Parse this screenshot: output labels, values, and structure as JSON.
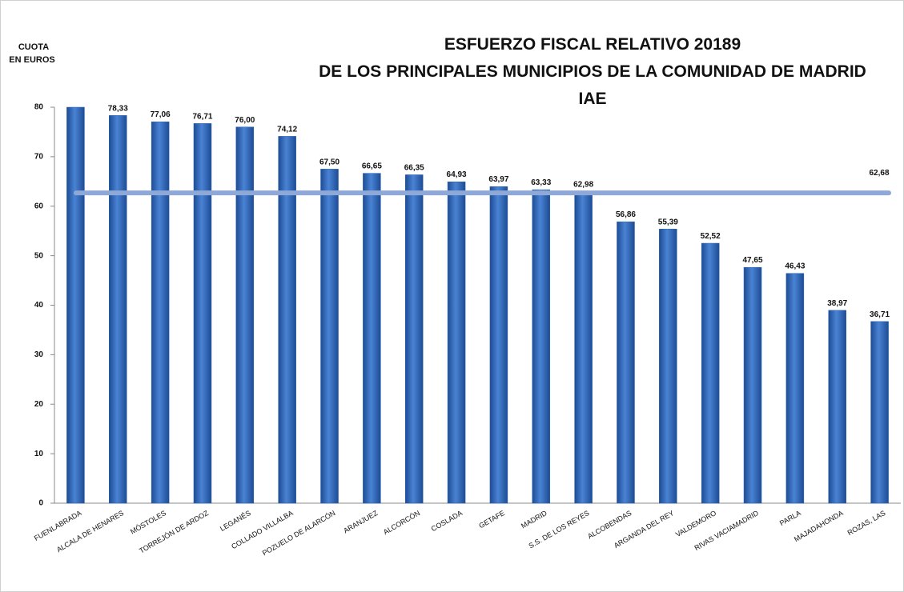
{
  "chart_data": {
    "type": "bar",
    "title": [
      "ESFUERZO FISCAL RELATIVO 20189",
      "DE LOS PRINCIPALES MUNICIPIOS DE LA COMUNIDAD DE MADRID",
      "IAE"
    ],
    "ylabel": [
      "CUOTA",
      "EN EUROS"
    ],
    "categories": [
      "FUENLABRADA",
      "ALCALA DE HENARES",
      "MÓSTOLES",
      "TORREJÓN DE ARDOZ",
      "LEGANÉS",
      "COLLADO VILLALBA",
      "POZUELO DE ALARCÓN",
      "ARANJUEZ",
      "ALCORCÓN",
      "COSLADA",
      "GETAFE",
      "MADRID",
      "S.S. DE LOS REYES",
      "ALCOBENDAS",
      "ARGANDA DEL REY",
      "VALDEMORO",
      "RIVAS VACIAMADRID",
      "PARLA",
      "MAJADAHONDA",
      "ROZAS, LAS"
    ],
    "values": [
      80,
      78.33,
      77.06,
      76.71,
      76.0,
      74.12,
      67.5,
      66.65,
      66.35,
      64.93,
      63.97,
      63.33,
      62.98,
      56.86,
      55.39,
      52.52,
      47.65,
      46.43,
      38.97,
      36.71
    ],
    "value_labels": [
      null,
      "78,33",
      "77,06",
      "76,71",
      "76,00",
      "74,12",
      "67,50",
      "66,65",
      "66,35",
      "64,93",
      "63,97",
      "63,33",
      "62,98",
      "56,86",
      "55,39",
      "52,52",
      "47,65",
      "46,43",
      "38,97",
      "36,71"
    ],
    "color": "#2d62b0",
    "reference_line": {
      "value": 62.68,
      "label": "62,68",
      "color": "#8ea9d8"
    },
    "ylim": [
      0,
      80
    ],
    "yticks": [
      0,
      10,
      20,
      30,
      40,
      50,
      60,
      70,
      80
    ],
    "grid": false
  }
}
